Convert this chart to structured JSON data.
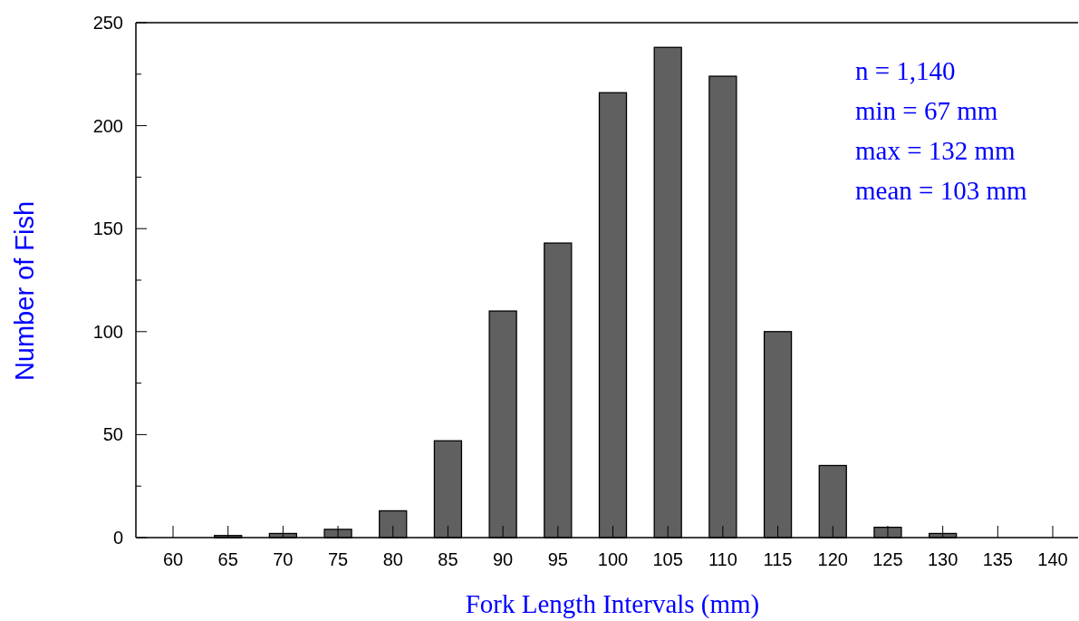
{
  "chart_data": {
    "type": "bar",
    "xlabel": "Fork Length Intervals (mm)",
    "ylabel": "Number of Fish",
    "categories": [
      "60",
      "65",
      "70",
      "75",
      "80",
      "85",
      "90",
      "95",
      "100",
      "105",
      "110",
      "115",
      "120",
      "125",
      "130",
      "135",
      "140"
    ],
    "values": [
      0,
      1,
      2,
      4,
      13,
      47,
      110,
      143,
      216,
      238,
      224,
      100,
      35,
      5,
      2,
      0,
      0
    ],
    "color": "#606060",
    "ylim": [
      0,
      250
    ],
    "yticks": [
      0,
      {
        "value": 25,
        "label": null
      },
      50,
      {
        "value": 75,
        "label": null
      },
      100,
      {
        "value": 125,
        "label": null
      },
      150,
      {
        "value": 175,
        "label": null
      },
      200,
      {
        "value": 225,
        "label": null
      },
      250
    ],
    "annotations": [
      "n = 1,140",
      "min = 67 mm",
      "max = 132 mm",
      "mean = 103 mm"
    ]
  }
}
